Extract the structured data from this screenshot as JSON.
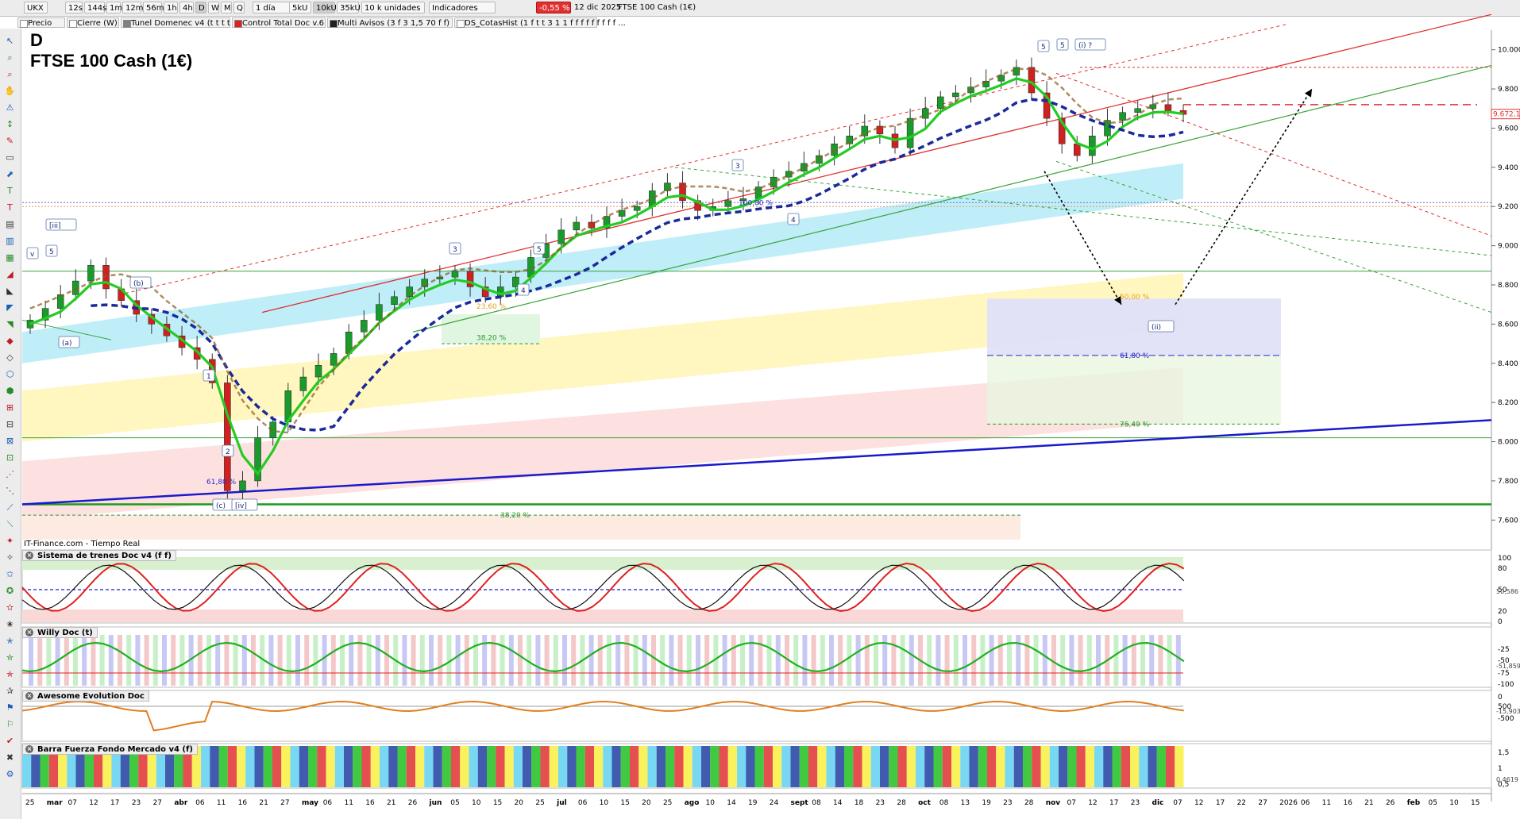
{
  "toolbar": {
    "symbol": "UKX",
    "timeframes": [
      "12s",
      "144s",
      "1m",
      "12m",
      "56m",
      "1h",
      "4h",
      "D",
      "W",
      "M",
      "Q"
    ],
    "active_timeframe": "D",
    "period": "1 día",
    "units": [
      "5kU",
      "10kU",
      "35kU"
    ],
    "active_unit": "10kU",
    "units_dropdown": "10 k unidades",
    "indicators_label": "Indicadores",
    "change_badge": "-0,55 %",
    "date": "12 dic 2025",
    "instrument": "FTSE 100 Cash (1€)"
  },
  "indicator_tabs": [
    {
      "label": "Precio",
      "color": "#ffffff"
    },
    {
      "label": "Cierre (W)",
      "color": "#ffffff"
    },
    {
      "label": "Tunel Domenec v4 (t t t t t)",
      "color": "#808080"
    },
    {
      "label": "Control Total Doc v.6",
      "color": "#e02020"
    },
    {
      "label": "Multi Avisos (3 f 3 1,5 70 f f)",
      "color": "#202020"
    },
    {
      "label": "DS_CotasHist (1 f t t 3 1 1 f f f f f f f f f ...",
      "color": "#ffffff"
    }
  ],
  "chart_title": {
    "letter": "D",
    "name": "FTSE 100 Cash (1€)"
  },
  "source_label": "IT-Finance.com - Tiempo Real",
  "colors": {
    "up": "#1a9a2a",
    "down": "#d02020",
    "ema_green": "#22cc22",
    "ema_red": "#e02020",
    "dashed_blue": "#1a2a9a",
    "trend_blue": "#1a1acc",
    "channel_red": "#e03030",
    "channel_green": "#3aa43a"
  },
  "chart_data": {
    "type": "candlestick",
    "y_ticks": [
      "10.000",
      "9.800",
      "9.600",
      "9.400",
      "9.200",
      "9.000",
      "8.800",
      "8.600",
      "8.400",
      "8.200",
      "8.000",
      "7.800",
      "7.600"
    ],
    "last_price": "9.672,1",
    "x_labels": [
      "25",
      "mar",
      "07",
      "12",
      "17",
      "23",
      "27",
      "abr",
      "06",
      "11",
      "16",
      "21",
      "27",
      "may",
      "06",
      "11",
      "16",
      "21",
      "26",
      "jun",
      "05",
      "10",
      "15",
      "20",
      "25",
      "jul",
      "06",
      "10",
      "15",
      "20",
      "25",
      "ago",
      "10",
      "14",
      "19",
      "24",
      "sept",
      "08",
      "14",
      "18",
      "23",
      "28",
      "oct",
      "08",
      "13",
      "19",
      "23",
      "28",
      "nov",
      "07",
      "12",
      "17",
      "23",
      "dic",
      "07",
      "12",
      "17",
      "22",
      "27",
      "2026",
      "06",
      "11",
      "16",
      "21",
      "26",
      "feb",
      "05",
      "10",
      "15"
    ],
    "series": [
      {
        "name": "close",
        "values": [
          8620,
          8680,
          8750,
          8820,
          8900,
          8780,
          8720,
          8650,
          8600,
          8540,
          8480,
          8420,
          8300,
          7750,
          7800,
          8020,
          8100,
          8260,
          8330,
          8390,
          8450,
          8560,
          8620,
          8700,
          8740,
          8790,
          8830,
          8840,
          8870,
          8790,
          8740,
          8790,
          8840,
          8940,
          9010,
          9080,
          9120,
          9090,
          9150,
          9180,
          9200,
          9280,
          9320,
          9230,
          9180,
          9200,
          9230,
          9240,
          9300,
          9350,
          9380,
          9420,
          9460,
          9520,
          9560,
          9610,
          9570,
          9500,
          9650,
          9700,
          9760,
          9780,
          9810,
          9840,
          9870,
          9910,
          9780,
          9650,
          9520,
          9460,
          9560,
          9640,
          9680,
          9700,
          9720,
          9690,
          9670
        ]
      }
    ],
    "fib_levels": [
      {
        "label": "100,00 %",
        "value": 9220
      },
      {
        "label": "23,60 %",
        "value": 8690
      },
      {
        "label": "38,20 %",
        "value": 8530
      },
      {
        "label": "50,00 %",
        "value": 8740
      },
      {
        "label": "61,80 %",
        "value": 8440
      },
      {
        "label": "76,40 %",
        "value": 8090
      },
      {
        "label": "61,80 %",
        "value": 7795
      },
      {
        "label": "38,20 %",
        "value": 7625
      }
    ],
    "wave_labels": [
      "[iii]",
      "v",
      "5",
      "(a)",
      "(b)",
      "1",
      "2",
      "(c)",
      "[iv]",
      "3",
      "4",
      "5",
      "3",
      "4",
      "5",
      "5",
      "(i) ?",
      "(ii)"
    ],
    "panels": [
      {
        "name": "Sistema de trenes Doc v4 (f f)",
        "ticks": [
          "100",
          "80",
          "50",
          "20",
          "0"
        ],
        "value": "50,586"
      },
      {
        "name": "Willy Doc (t)",
        "ticks": [
          "-25",
          "-50",
          "-75",
          "-100"
        ],
        "value": "-51,859"
      },
      {
        "name": "Awesome Evolution Doc",
        "ticks": [
          "500",
          "0",
          "-500"
        ],
        "value": "-15,903"
      },
      {
        "name": "Barra Fuerza Fondo Mercado v4 (f)",
        "ticks": [
          "1,5",
          "1",
          "0,5"
        ],
        "value": "0,4619"
      }
    ]
  }
}
